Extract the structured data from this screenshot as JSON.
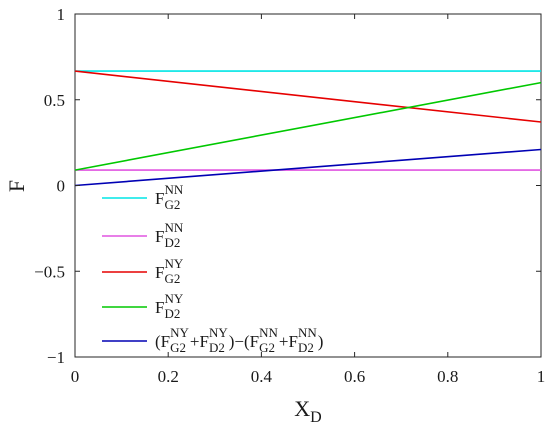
{
  "chart_data": {
    "type": "line",
    "xlabel": "X",
    "xlabel_sub": "D",
    "ylabel": "F",
    "xlim": [
      0,
      1
    ],
    "ylim": [
      -1,
      1
    ],
    "xticks": [
      "0",
      "0.2",
      "0.4",
      "0.6",
      "0.8",
      "1"
    ],
    "yticks": [
      "-1",
      "-0.5",
      "0",
      "0.5",
      "1"
    ],
    "grid": false,
    "legend_position": "bottom-left",
    "series": [
      {
        "name": "F_G2^NN",
        "color": "#00e5e5",
        "x": [
          0,
          1
        ],
        "y": [
          0.667,
          0.667
        ],
        "legend": [
          {
            "t": "F"
          },
          {
            "t": "G2",
            "s": "sub"
          },
          {
            "t": "NN",
            "s": "sup"
          }
        ]
      },
      {
        "name": "F_D2^NN",
        "color": "#e055e0",
        "x": [
          0,
          1
        ],
        "y": [
          0.09,
          0.09
        ],
        "legend": [
          {
            "t": "F"
          },
          {
            "t": "D2",
            "s": "sub"
          },
          {
            "t": "NN",
            "s": "sup"
          }
        ]
      },
      {
        "name": "F_G2^NY",
        "color": "#e60000",
        "x": [
          0,
          1
        ],
        "y": [
          0.667,
          0.37
        ],
        "legend": [
          {
            "t": "F"
          },
          {
            "t": "G2",
            "s": "sub"
          },
          {
            "t": "NY",
            "s": "sup"
          }
        ]
      },
      {
        "name": "F_D2^NY",
        "color": "#00c800",
        "x": [
          0,
          1
        ],
        "y": [
          0.09,
          0.6
        ],
        "legend": [
          {
            "t": "F"
          },
          {
            "t": "D2",
            "s": "sub"
          },
          {
            "t": "NY",
            "s": "sup"
          }
        ]
      },
      {
        "name": "(F_G2^NY+F_D2^NY)-(F_G2^NN+F_D2^NN)",
        "color": "#0000b4",
        "x": [
          0,
          1
        ],
        "y": [
          0.0,
          0.21
        ],
        "legend": [
          {
            "t": "(F"
          },
          {
            "t": "G2",
            "s": "sub"
          },
          {
            "t": "NY",
            "s": "sup"
          },
          {
            "t": "+F"
          },
          {
            "t": "D2",
            "s": "sub"
          },
          {
            "t": "NY",
            "s": "sup"
          },
          {
            "t": ")−(F"
          },
          {
            "t": "G2",
            "s": "sub"
          },
          {
            "t": "NN",
            "s": "sup"
          },
          {
            "t": "+F"
          },
          {
            "t": "D2",
            "s": "sub"
          },
          {
            "t": "NN",
            "s": "sup"
          },
          {
            "t": ")"
          }
        ]
      }
    ]
  }
}
